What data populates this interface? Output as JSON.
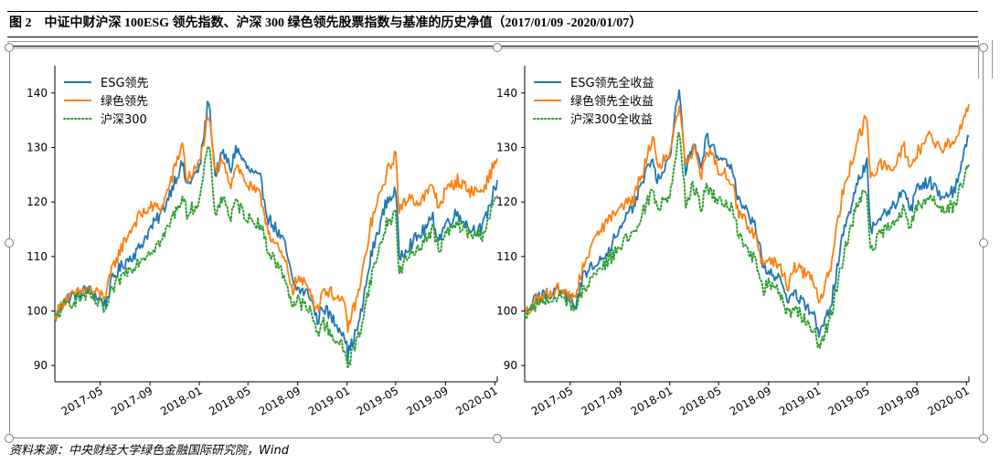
{
  "caption": "图 2　中证中财沪深 100ESG 领先指数、沪深 300 绿色领先股票指数与基准的历史净值（2017/01/09 -2020/01/07）",
  "source": "资料来源：中央财经大学绿色金融国际研究院，Wind",
  "colors": {
    "blue": "#1f77b4",
    "orange": "#ff7f0e",
    "green": "#2ca02c"
  },
  "chart_data": [
    {
      "type": "line",
      "date_range": [
        "2017-01-09",
        "2020-01-07"
      ],
      "ylim": [
        87,
        145
      ],
      "yticks": [
        90,
        100,
        110,
        120,
        130,
        140
      ],
      "xticks": [
        {
          "date": "2017-05-01",
          "label": "2017-05"
        },
        {
          "date": "2017-09-01",
          "label": "2017-09"
        },
        {
          "date": "2018-01-01",
          "label": "2018-01"
        },
        {
          "date": "2018-05-01",
          "label": "2018-05"
        },
        {
          "date": "2018-09-01",
          "label": "2018-09"
        },
        {
          "date": "2019-01-01",
          "label": "2019-01"
        },
        {
          "date": "2019-05-01",
          "label": "2019-05"
        },
        {
          "date": "2019-09-01",
          "label": "2019-09"
        },
        {
          "date": "2020-01-01",
          "label": "2020-01"
        }
      ],
      "legend_position": "top-left",
      "series": [
        {
          "name": "ESG领先",
          "color": "#1f77b4",
          "style": "solid",
          "x": [
            "2017-01-09",
            "2017-02-01",
            "2017-03-01",
            "2017-04-01",
            "2017-05-01",
            "2017-05-15",
            "2017-06-01",
            "2017-07-01",
            "2017-08-01",
            "2017-09-01",
            "2017-10-01",
            "2017-11-01",
            "2017-11-20",
            "2017-12-01",
            "2018-01-01",
            "2018-01-24",
            "2018-02-09",
            "2018-03-01",
            "2018-03-20",
            "2018-04-01",
            "2018-05-01",
            "2018-06-01",
            "2018-06-20",
            "2018-07-01",
            "2018-08-01",
            "2018-08-20",
            "2018-09-01",
            "2018-10-01",
            "2018-10-20",
            "2018-11-01",
            "2018-12-01",
            "2018-12-25",
            "2019-01-03",
            "2019-02-01",
            "2019-03-01",
            "2019-04-08",
            "2019-05-01",
            "2019-05-10",
            "2019-06-01",
            "2019-07-01",
            "2019-08-01",
            "2019-08-15",
            "2019-09-01",
            "2019-10-01",
            "2019-11-01",
            "2019-12-01",
            "2020-01-07"
          ],
          "y": [
            98.5,
            102,
            103,
            104,
            102,
            101.5,
            106,
            109,
            111,
            115,
            118,
            124,
            127,
            123,
            126,
            139,
            125,
            129,
            126,
            130,
            126,
            124,
            117,
            116,
            112,
            105,
            104,
            103,
            98,
            101,
            98,
            96,
            92,
            98,
            110,
            120,
            122,
            110,
            112,
            114,
            117,
            113,
            116,
            118,
            115,
            115,
            124
          ]
        },
        {
          "name": "绿色领先",
          "color": "#ff7f0e",
          "style": "solid",
          "x": [
            "2017-01-09",
            "2017-02-01",
            "2017-03-01",
            "2017-04-01",
            "2017-05-01",
            "2017-05-15",
            "2017-06-01",
            "2017-07-01",
            "2017-08-01",
            "2017-09-01",
            "2017-10-01",
            "2017-11-01",
            "2017-11-20",
            "2017-12-01",
            "2018-01-01",
            "2018-01-24",
            "2018-02-09",
            "2018-03-01",
            "2018-03-20",
            "2018-04-01",
            "2018-05-01",
            "2018-06-01",
            "2018-06-20",
            "2018-07-01",
            "2018-08-01",
            "2018-08-20",
            "2018-09-01",
            "2018-10-01",
            "2018-10-20",
            "2018-11-01",
            "2018-12-01",
            "2018-12-25",
            "2019-01-03",
            "2019-02-01",
            "2019-03-01",
            "2019-04-08",
            "2019-05-01",
            "2019-05-10",
            "2019-06-01",
            "2019-07-01",
            "2019-08-01",
            "2019-08-15",
            "2019-09-01",
            "2019-10-01",
            "2019-11-01",
            "2019-12-01",
            "2020-01-07"
          ],
          "y": [
            99,
            102,
            103,
            104,
            103,
            103,
            108,
            113,
            117,
            119,
            119,
            126,
            131,
            124,
            127,
            136,
            125,
            128,
            123,
            127,
            123,
            121,
            115,
            113,
            109,
            104,
            106,
            104,
            100,
            104,
            103,
            101,
            97,
            104,
            116,
            125,
            129,
            118,
            121,
            120,
            123,
            119,
            122,
            124,
            122,
            122,
            128
          ]
        },
        {
          "name": "沪深300",
          "color": "#2ca02c",
          "style": "dotted",
          "x": [
            "2017-01-09",
            "2017-02-01",
            "2017-03-01",
            "2017-04-01",
            "2017-05-01",
            "2017-05-15",
            "2017-06-01",
            "2017-07-01",
            "2017-08-01",
            "2017-09-01",
            "2017-10-01",
            "2017-11-01",
            "2017-11-20",
            "2017-12-01",
            "2018-01-01",
            "2018-01-24",
            "2018-02-09",
            "2018-03-01",
            "2018-03-20",
            "2018-04-01",
            "2018-05-01",
            "2018-06-01",
            "2018-06-20",
            "2018-07-01",
            "2018-08-01",
            "2018-08-20",
            "2018-09-01",
            "2018-10-01",
            "2018-10-20",
            "2018-11-01",
            "2018-12-01",
            "2018-12-25",
            "2019-01-03",
            "2019-02-01",
            "2019-03-01",
            "2019-04-08",
            "2019-05-01",
            "2019-05-10",
            "2019-06-01",
            "2019-07-01",
            "2019-08-01",
            "2019-08-15",
            "2019-09-01",
            "2019-10-01",
            "2019-11-01",
            "2019-12-01",
            "2020-01-07"
          ],
          "y": [
            98.5,
            101,
            102,
            103,
            101,
            100,
            104,
            107,
            109,
            111,
            113,
            118,
            121,
            118,
            120,
            131,
            118,
            121,
            117,
            120,
            117,
            116,
            111,
            110,
            106,
            101,
            102,
            100,
            96,
            98,
            95,
            93,
            90,
            96,
            106,
            116,
            118,
            107,
            110,
            112,
            115,
            111,
            114,
            116,
            114,
            114,
            121
          ]
        }
      ]
    },
    {
      "type": "line",
      "date_range": [
        "2017-01-09",
        "2020-01-07"
      ],
      "ylim": [
        87,
        145
      ],
      "yticks": [
        90,
        100,
        110,
        120,
        130,
        140
      ],
      "xticks": [
        {
          "date": "2017-05-01",
          "label": "2017-05"
        },
        {
          "date": "2017-09-01",
          "label": "2017-09"
        },
        {
          "date": "2018-01-01",
          "label": "2018-01"
        },
        {
          "date": "2018-05-01",
          "label": "2018-05"
        },
        {
          "date": "2018-09-01",
          "label": "2018-09"
        },
        {
          "date": "2019-01-01",
          "label": "2019-01"
        },
        {
          "date": "2019-05-01",
          "label": "2019-05"
        },
        {
          "date": "2019-09-01",
          "label": "2019-09"
        },
        {
          "date": "2020-01-01",
          "label": "2020-01"
        }
      ],
      "legend_position": "top-left",
      "series": [
        {
          "name": "ESG领先全收益",
          "color": "#1f77b4",
          "style": "solid",
          "x": [
            "2017-01-09",
            "2017-02-01",
            "2017-03-01",
            "2017-04-01",
            "2017-05-01",
            "2017-05-15",
            "2017-06-01",
            "2017-07-01",
            "2017-08-01",
            "2017-09-01",
            "2017-10-01",
            "2017-11-01",
            "2017-11-20",
            "2017-12-01",
            "2018-01-01",
            "2018-01-24",
            "2018-02-09",
            "2018-03-01",
            "2018-03-20",
            "2018-04-01",
            "2018-05-01",
            "2018-06-01",
            "2018-06-20",
            "2018-07-01",
            "2018-08-01",
            "2018-08-20",
            "2018-09-01",
            "2018-10-01",
            "2018-10-20",
            "2018-11-01",
            "2018-12-01",
            "2018-12-25",
            "2019-01-03",
            "2019-02-01",
            "2019-03-01",
            "2019-04-08",
            "2019-05-01",
            "2019-05-10",
            "2019-06-01",
            "2019-07-01",
            "2019-08-01",
            "2019-08-15",
            "2019-09-01",
            "2019-10-01",
            "2019-11-01",
            "2019-12-01",
            "2020-01-07"
          ],
          "y": [
            98.5,
            102,
            103,
            104,
            102,
            101.5,
            106,
            109,
            111,
            115,
            119,
            125,
            128,
            124,
            128,
            141,
            126,
            131,
            127,
            132,
            128,
            127,
            120,
            119,
            115,
            108,
            107,
            106,
            101,
            104,
            101,
            99,
            95,
            101,
            113,
            124,
            127,
            115,
            117,
            119,
            122,
            118,
            122,
            124,
            121,
            122,
            132
          ]
        },
        {
          "name": "绿色领先全收益",
          "color": "#ff7f0e",
          "style": "solid",
          "x": [
            "2017-01-09",
            "2017-02-01",
            "2017-03-01",
            "2017-04-01",
            "2017-05-01",
            "2017-05-15",
            "2017-06-01",
            "2017-07-01",
            "2017-08-01",
            "2017-09-01",
            "2017-10-01",
            "2017-11-01",
            "2017-11-20",
            "2017-12-01",
            "2018-01-01",
            "2018-01-24",
            "2018-02-09",
            "2018-03-01",
            "2018-03-20",
            "2018-04-01",
            "2018-05-01",
            "2018-06-01",
            "2018-06-20",
            "2018-07-01",
            "2018-08-01",
            "2018-08-20",
            "2018-09-01",
            "2018-10-01",
            "2018-10-20",
            "2018-11-01",
            "2018-12-01",
            "2018-12-25",
            "2019-01-03",
            "2019-02-01",
            "2019-03-01",
            "2019-04-08",
            "2019-05-01",
            "2019-05-10",
            "2019-06-01",
            "2019-07-01",
            "2019-08-01",
            "2019-08-15",
            "2019-09-01",
            "2019-10-01",
            "2019-11-01",
            "2019-12-01",
            "2020-01-07"
          ],
          "y": [
            99,
            102,
            103,
            104,
            103,
            103,
            108,
            113,
            117,
            119,
            120,
            127,
            132,
            126,
            129,
            138,
            127,
            130,
            125,
            130,
            126,
            124,
            118,
            117,
            113,
            108,
            110,
            108,
            104,
            108,
            107,
            105,
            101,
            108,
            121,
            131,
            136,
            124,
            127,
            126,
            130,
            126,
            129,
            132,
            130,
            131,
            138
          ]
        },
        {
          "name": "沪深300全收益",
          "color": "#2ca02c",
          "style": "dotted",
          "x": [
            "2017-01-09",
            "2017-02-01",
            "2017-03-01",
            "2017-04-01",
            "2017-05-01",
            "2017-05-15",
            "2017-06-01",
            "2017-07-01",
            "2017-08-01",
            "2017-09-01",
            "2017-10-01",
            "2017-11-01",
            "2017-11-20",
            "2017-12-01",
            "2018-01-01",
            "2018-01-24",
            "2018-02-09",
            "2018-03-01",
            "2018-03-20",
            "2018-04-01",
            "2018-05-01",
            "2018-06-01",
            "2018-06-20",
            "2018-07-01",
            "2018-08-01",
            "2018-08-20",
            "2018-09-01",
            "2018-10-01",
            "2018-10-20",
            "2018-11-01",
            "2018-12-01",
            "2018-12-25",
            "2019-01-03",
            "2019-02-01",
            "2019-03-01",
            "2019-04-08",
            "2019-05-01",
            "2019-05-10",
            "2019-06-01",
            "2019-07-01",
            "2019-08-01",
            "2019-08-15",
            "2019-09-01",
            "2019-10-01",
            "2019-11-01",
            "2019-12-01",
            "2020-01-07"
          ],
          "y": [
            98.5,
            101,
            102,
            103,
            101,
            100,
            104,
            107,
            109,
            112,
            114,
            119,
            122,
            119,
            121,
            133,
            120,
            123,
            119,
            123,
            120,
            119,
            114,
            113,
            109,
            104,
            105,
            103,
            99,
            101,
            98,
            96,
            93,
            99,
            109,
            120,
            122,
            111,
            114,
            116,
            119,
            115,
            119,
            121,
            119,
            119,
            127
          ]
        }
      ]
    }
  ]
}
